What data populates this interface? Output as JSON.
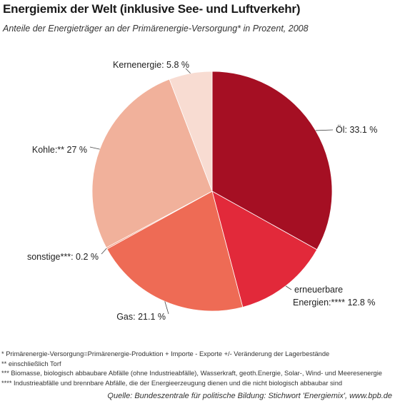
{
  "chart_data": {
    "type": "pie",
    "title": "Energiemix der Welt (inklusive See- und Luftverkehr)",
    "subtitle": "Anteile der Energieträger an der Primärenergie-Versorgung* in Prozent, 2008",
    "slices": [
      {
        "label": "Öl: 33.1 %",
        "value": 33.1,
        "color": "#a50f23"
      },
      {
        "label_line1": "erneuerbare",
        "label_line2": "Energien:**** 12.8 %",
        "value": 12.8,
        "color": "#e2293a"
      },
      {
        "label": "Gas: 21.1 %",
        "value": 21.1,
        "color": "#ee6b55"
      },
      {
        "label": "sonstige***: 0.2 %",
        "value": 0.2,
        "color": "#f29a80"
      },
      {
        "label": "Kohle:** 27 %",
        "value": 27.0,
        "color": "#f1b19b"
      },
      {
        "label": "Kernenergie: 5.8 %",
        "value": 5.8,
        "color": "#f8dcd2"
      }
    ]
  },
  "notes": [
    "* Primärenergie-Versorgung=Primärenergie-Produktion + Importe - Exporte +/- Veränderung der Lagerbestände",
    "** einschließlich Torf",
    "*** Biomasse, biologisch abbaubare Abfälle (ohne Industrieabfälle), Wasserkraft, geoth.Energie, Solar-, Wind- und Meeresenergie",
    "**** Industrieabfälle und brennbare Abfälle, die der Energieerzeugung dienen und die nicht biologisch abbaubar sind"
  ],
  "source": "Quelle: Bundeszentrale für politische Bildung: Stichwort 'Energiemix', www.bpb.de"
}
